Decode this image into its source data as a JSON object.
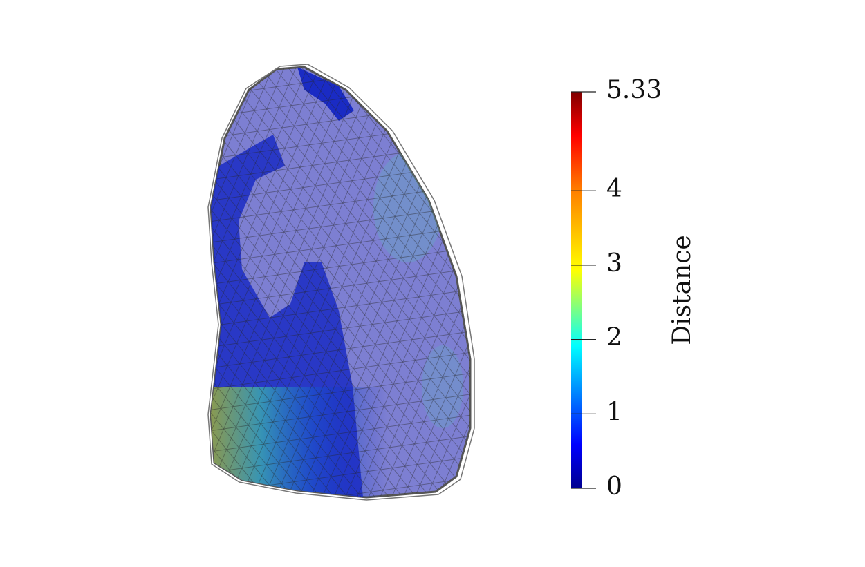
{
  "colorbar": {
    "title": "Distance",
    "range": [
      0,
      5.33
    ],
    "ticks": [
      0,
      1,
      2,
      3,
      4,
      5.33
    ]
  }
}
